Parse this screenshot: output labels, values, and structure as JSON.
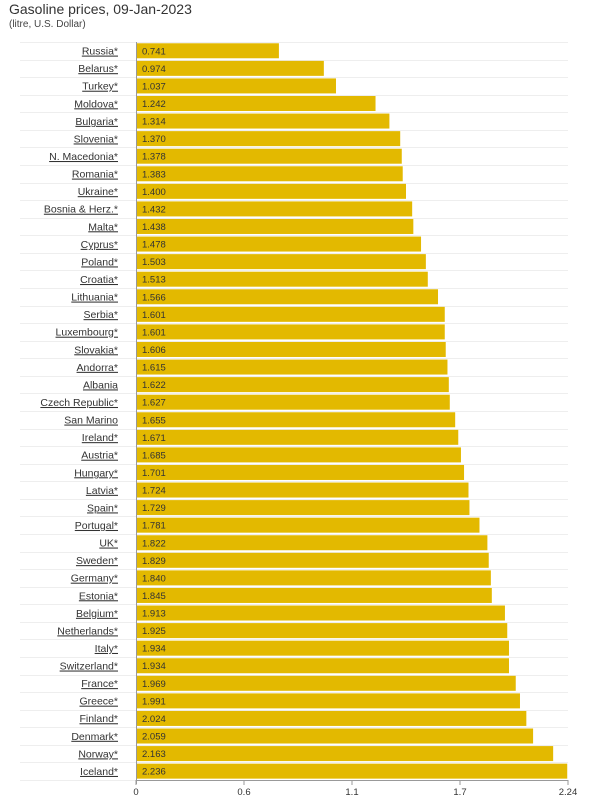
{
  "title": "Gasoline prices, 09-Jan-2023",
  "subtitle": "(litre, U.S. Dollar)",
  "chart_data": {
    "type": "bar",
    "orientation": "horizontal",
    "title": "Gasoline prices, 09-Jan-2023",
    "subtitle": "(litre, U.S. Dollar)",
    "xlabel": "",
    "ylabel": "",
    "xlim": [
      0,
      2.24
    ],
    "x_ticks": [
      "0",
      "0.6",
      "1.1",
      "1.7",
      "2.24"
    ],
    "x_tick_values": [
      0,
      0.56,
      1.12,
      1.68,
      2.24
    ],
    "bar_color": "#E3B900",
    "grid": true,
    "categories": [
      "Russia*",
      "Belarus*",
      "Turkey*",
      "Moldova*",
      "Bulgaria*",
      "Slovenia*",
      "N. Macedonia*",
      "Romania*",
      "Ukraine*",
      "Bosnia & Herz.*",
      "Malta*",
      "Cyprus*",
      "Poland*",
      "Croatia*",
      "Lithuania*",
      "Serbia*",
      "Luxembourg*",
      "Slovakia*",
      "Andorra*",
      "Albania",
      "Czech Republic*",
      "San Marino",
      "Ireland*",
      "Austria*",
      "Hungary*",
      "Latvia*",
      "Spain*",
      "Portugal*",
      "UK*",
      "Sweden*",
      "Germany*",
      "Estonia*",
      "Belgium*",
      "Netherlands*",
      "Italy*",
      "Switzerland*",
      "France*",
      "Greece*",
      "Finland*",
      "Denmark*",
      "Norway*",
      "Iceland*"
    ],
    "values": [
      0.741,
      0.974,
      1.037,
      1.242,
      1.314,
      1.37,
      1.378,
      1.383,
      1.4,
      1.432,
      1.438,
      1.478,
      1.503,
      1.513,
      1.566,
      1.601,
      1.601,
      1.606,
      1.615,
      1.622,
      1.627,
      1.655,
      1.671,
      1.685,
      1.701,
      1.724,
      1.729,
      1.781,
      1.822,
      1.829,
      1.84,
      1.845,
      1.913,
      1.925,
      1.934,
      1.934,
      1.969,
      1.991,
      2.024,
      2.059,
      2.163,
      2.236
    ],
    "value_labels": [
      "0.741",
      "0.974",
      "1.037",
      "1.242",
      "1.314",
      "1.370",
      "1.378",
      "1.383",
      "1.400",
      "1.432",
      "1.438",
      "1.478",
      "1.503",
      "1.513",
      "1.566",
      "1.601",
      "1.601",
      "1.606",
      "1.615",
      "1.622",
      "1.627",
      "1.655",
      "1.671",
      "1.685",
      "1.701",
      "1.724",
      "1.729",
      "1.781",
      "1.822",
      "1.829",
      "1.840",
      "1.845",
      "1.913",
      "1.925",
      "1.934",
      "1.934",
      "1.969",
      "1.991",
      "2.024",
      "2.059",
      "2.163",
      "2.236"
    ]
  }
}
